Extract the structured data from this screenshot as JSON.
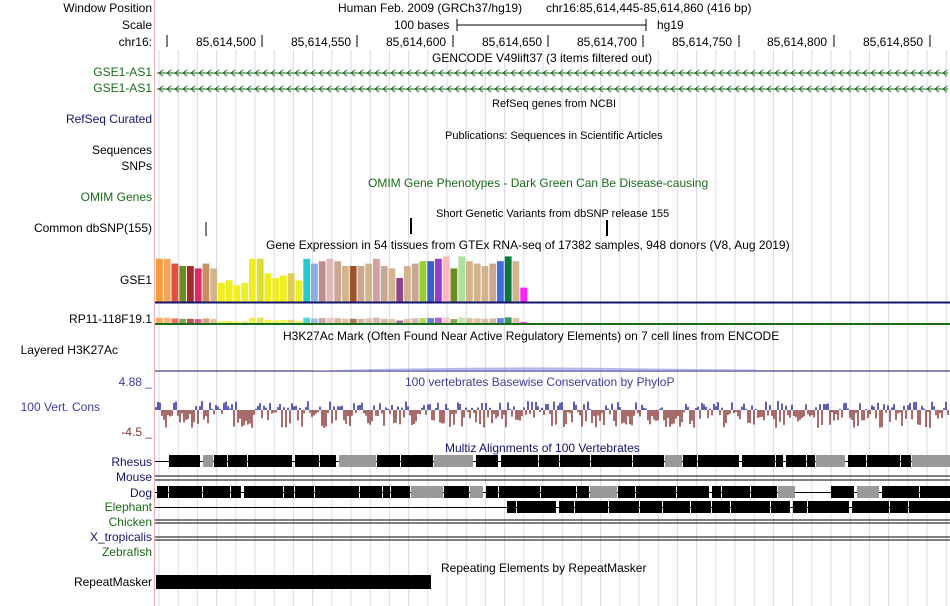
{
  "labels": {
    "window_position": "Window Position",
    "scale": "Scale",
    "chrom": "chr16:",
    "gse1_as1_a": "GSE1-AS1",
    "gse1_as1_b": "GSE1-AS1",
    "refseq": "RefSeq Curated",
    "sequences": "Sequences",
    "snps": "SNPs",
    "omim": "OMIM Genes",
    "dbsnp": "Common dbSNP(155)",
    "gse1": "GSE1",
    "rp11": "RP11-118F19.1",
    "h3k27ac": "Layered H3K27Ac",
    "cons_max": "4.88 _",
    "cons": "100 Vert. Cons",
    "cons_min": "-4.5 _",
    "rhesus": "Rhesus",
    "mouse": "Mouse",
    "dog": "Dog",
    "elephant": "Elephant",
    "chicken": "Chicken",
    "xtrop": "X_tropicalis",
    "zebrafish": "Zebrafish",
    "repeatmasker": "RepeatMasker"
  },
  "header": {
    "assembly": "Human Feb. 2009 (GRCh37/hg19)",
    "position": "chr16:85,614,445-85,614,860 (416 bp)",
    "scale_text": "100 bases",
    "db": "hg19",
    "ticks": [
      "85,614,500",
      "85,614,550",
      "85,614,600",
      "85,614,650",
      "85,614,700",
      "85,614,750",
      "85,614,800",
      "85,614,850"
    ]
  },
  "tracks": {
    "gencode": "GENCODE V49lift37 (3 items filtered out)",
    "refseq": "RefSeq genes from NCBI",
    "publications": "Publications: Sequences in Scientific Articles",
    "omim": "OMIM Gene Phenotypes - Dark Green Can Be Disease-causing",
    "dbsnp": "Short Genetic Variants from dbSNP release 155",
    "gtex": "Gene Expression in 54 tissues from GTEx RNA-seq of 17382 samples, 948 donors (V8, Aug 2019)",
    "h3k27ac": "H3K27Ac Mark (Often Found Near Active Regulatory Elements) on 7 cell lines from ENCODE",
    "phylop": "100 vertebrates Basewise Conservation by PhyloP",
    "multiz": "Multiz Alignments of 100 Vertebrates",
    "rmsk": "Repeating Elements by RepeatMasker"
  },
  "colors": {
    "grid": "#d8d8ec",
    "gencode": "#1a6a1a",
    "navy": "#14146e",
    "cons_pos": "#2a2a9a",
    "cons_neg": "#8b3a3a",
    "rp11_line": "#1a6a1a"
  },
  "gtex": {
    "colors": [
      "#f79a3a",
      "#f4a460",
      "#e0523b",
      "#6b8e23",
      "#a52a2a",
      "#dc2c6c",
      "#cd8c5c",
      "#d2b48c",
      "#eeee22",
      "#eeee22",
      "#eeee22",
      "#eeee22",
      "#eeee22",
      "#dddd33",
      "#eeee22",
      "#eeee22",
      "#eeee22",
      "#ddcc55",
      "#eeee22",
      "#22cccc",
      "#88b0e0",
      "#bc8f8f",
      "#e0b8b8",
      "#c8a890",
      "#d2b48c",
      "#a0522d",
      "#c8a890",
      "#d2b48c",
      "#d2a0a0",
      "#c8a890",
      "#d2b48c",
      "#8b4789",
      "#d2b48c",
      "#c8a890",
      "#9acd32",
      "#3a5fcd",
      "#9a3acd",
      "#ffb6c1",
      "#6b8e23",
      "#b0e0a0",
      "#d2b48c",
      "#d2b48c",
      "#d2b48c",
      "#c8a890",
      "#4169e1",
      "#0a7a3a",
      "#d2b48c",
      "#ff22ff"
    ],
    "values": [
      0.9,
      0.9,
      0.8,
      0.75,
      0.75,
      0.7,
      0.8,
      0.7,
      0.4,
      0.45,
      0.35,
      0.4,
      0.9,
      0.9,
      0.6,
      0.5,
      0.55,
      0.6,
      0.45,
      0.9,
      0.8,
      0.85,
      0.9,
      0.85,
      0.75,
      0.75,
      0.75,
      0.8,
      0.9,
      0.75,
      0.7,
      0.5,
      0.75,
      0.8,
      0.85,
      0.85,
      0.9,
      0.95,
      0.7,
      0.95,
      0.85,
      0.8,
      0.75,
      0.8,
      0.85,
      0.95,
      0.85,
      0.3
    ]
  }
}
